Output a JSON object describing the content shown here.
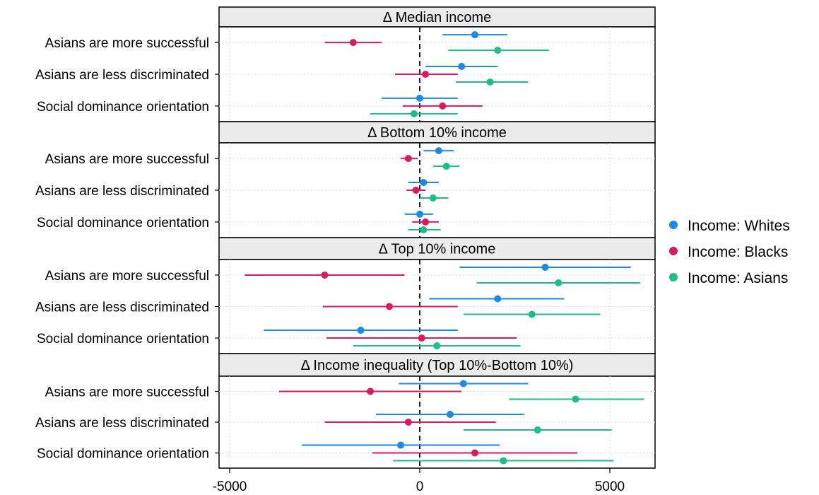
{
  "chart_data": {
    "type": "scatter",
    "subtype": "coefficient plot with confidence intervals, faceted",
    "xlim": [
      -5000,
      6000
    ],
    "x_ticks": [
      "-5000",
      "0",
      "5000"
    ],
    "x_tick_values": [
      -5000,
      0,
      5000
    ],
    "zero_line": "dashed",
    "legend_position": "right",
    "rows": [
      "Asians are more successful",
      "Asians are less discriminated",
      "Social dominance orientation"
    ],
    "series": [
      {
        "name": "Income: Whites",
        "color": "#1E88E5"
      },
      {
        "name": "Income: Blacks",
        "color": "#D81B60"
      },
      {
        "name": "Income: Asians",
        "color": "#1DBF85"
      }
    ],
    "panels": [
      {
        "title": "Δ Median income",
        "estimates": [
          [
            {
              "est": 1450,
              "lo": 600,
              "hi": 2300
            },
            {
              "est": -1750,
              "lo": -2500,
              "hi": -1000
            },
            {
              "est": 2050,
              "lo": 750,
              "hi": 3400
            }
          ],
          [
            {
              "est": 1100,
              "lo": 150,
              "hi": 2050
            },
            {
              "est": 150,
              "lo": -650,
              "hi": 1000
            },
            {
              "est": 1850,
              "lo": 950,
              "hi": 2850
            }
          ],
          [
            {
              "est": 0,
              "lo": -1000,
              "hi": 1000
            },
            {
              "est": 600,
              "lo": -450,
              "hi": 1650
            },
            {
              "est": -150,
              "lo": -1300,
              "hi": 1000
            }
          ]
        ]
      },
      {
        "title": "Δ Bottom 10% income",
        "estimates": [
          [
            {
              "est": 500,
              "lo": 100,
              "hi": 900
            },
            {
              "est": -300,
              "lo": -500,
              "hi": -50
            },
            {
              "est": 700,
              "lo": 350,
              "hi": 1050
            }
          ],
          [
            {
              "est": 100,
              "lo": -300,
              "hi": 500
            },
            {
              "est": -100,
              "lo": -350,
              "hi": 150
            },
            {
              "est": 350,
              "lo": 0,
              "hi": 750
            }
          ],
          [
            {
              "est": 0,
              "lo": -400,
              "hi": 350
            },
            {
              "est": 150,
              "lo": -200,
              "hi": 500
            },
            {
              "est": 100,
              "lo": -300,
              "hi": 550
            }
          ]
        ]
      },
      {
        "title": "Δ Top 10% income",
        "estimates": [
          [
            {
              "est": 3300,
              "lo": 1050,
              "hi": 5550
            },
            {
              "est": -2500,
              "lo": -4600,
              "hi": -400
            },
            {
              "est": 3650,
              "lo": 1500,
              "hi": 5800
            }
          ],
          [
            {
              "est": 2050,
              "lo": 250,
              "hi": 3800
            },
            {
              "est": -800,
              "lo": -2550,
              "hi": 1000
            },
            {
              "est": 2950,
              "lo": 1150,
              "hi": 4750
            }
          ],
          [
            {
              "est": -1550,
              "lo": -4100,
              "hi": 1000
            },
            {
              "est": 50,
              "lo": -2450,
              "hi": 2550
            },
            {
              "est": 450,
              "lo": -1750,
              "hi": 2650
            }
          ]
        ]
      },
      {
        "title": "Δ Income inequality (Top 10%-Bottom 10%)",
        "estimates": [
          [
            {
              "est": 1150,
              "lo": -550,
              "hi": 2850
            },
            {
              "est": -1300,
              "lo": -3700,
              "hi": 1100
            },
            {
              "est": 4100,
              "lo": 2350,
              "hi": 5900
            }
          ],
          [
            {
              "est": 800,
              "lo": -1150,
              "hi": 2750
            },
            {
              "est": -300,
              "lo": -2500,
              "hi": 2000
            },
            {
              "est": 3100,
              "lo": 1150,
              "hi": 5050
            }
          ],
          [
            {
              "est": -500,
              "lo": -3100,
              "hi": 2100
            },
            {
              "est": 1450,
              "lo": -1250,
              "hi": 4150
            },
            {
              "est": 2200,
              "lo": -700,
              "hi": 5100
            }
          ]
        ]
      }
    ]
  }
}
